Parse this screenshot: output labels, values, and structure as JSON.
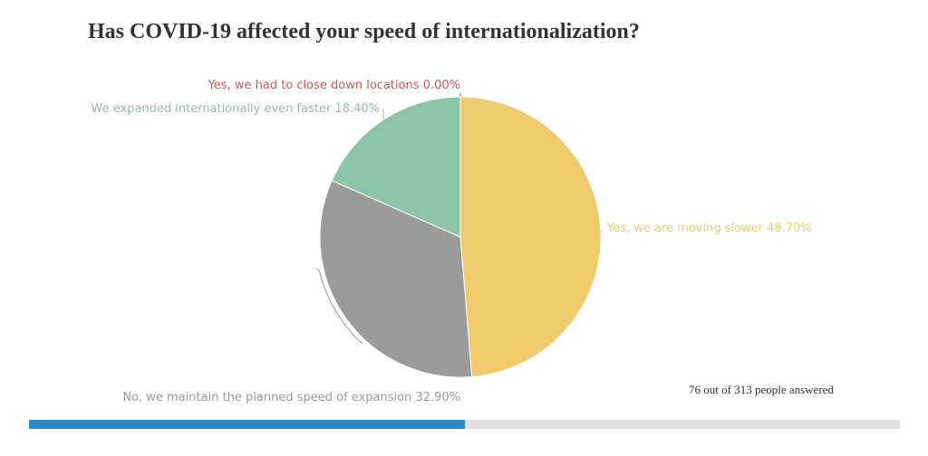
{
  "chart_data": {
    "type": "pie",
    "title": "Has COVID-19 affected your speed of internationalization?",
    "slices": [
      {
        "label": "Yes, we are moving slower",
        "value": 48.7,
        "value_text": "48.70%",
        "color": "#f0cb6c"
      },
      {
        "label": "No, we maintain the planned speed of expansion",
        "value": 32.9,
        "value_text": "32.90%",
        "color": "#9b9b9b"
      },
      {
        "label": "We expanded internationally even faster",
        "value": 18.4,
        "value_text": "18.40%",
        "color": "#8dc4a7"
      },
      {
        "label": "Yes, we had to close down locations",
        "value": 0.0,
        "value_text": "0.00%",
        "color": "#d9534f"
      }
    ]
  },
  "footer": {
    "answered_text": "76 out of 313 people answered"
  },
  "progress": {
    "fraction": 0.5,
    "color": "#2b8ac6",
    "track_color": "#dddddd"
  }
}
